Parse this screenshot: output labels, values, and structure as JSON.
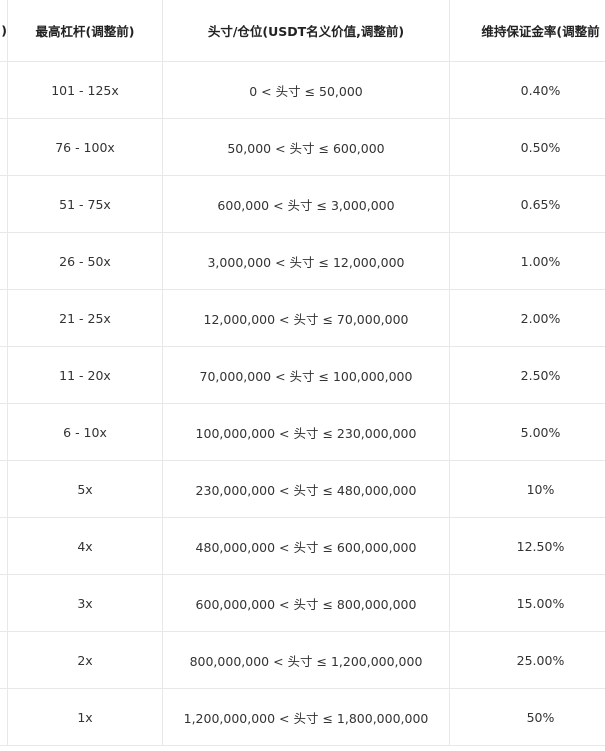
{
  "table": {
    "cut_header": ")",
    "headers": [
      "最高杠杆(调整前)",
      "头寸/仓位(USDT名义价值,调整前)",
      "维持保证金率(调整前"
    ],
    "rows": [
      [
        "101 - 125x",
        "0 < 头寸 ≤ 50,000",
        "0.40%"
      ],
      [
        "76 - 100x",
        "50,000 < 头寸 ≤ 600,000",
        "0.50%"
      ],
      [
        "51 - 75x",
        "600,000 < 头寸 ≤ 3,000,000",
        "0.65%"
      ],
      [
        "26 - 50x",
        "3,000,000 < 头寸 ≤ 12,000,000",
        "1.00%"
      ],
      [
        "21 - 25x",
        "12,000,000 < 头寸 ≤ 70,000,000",
        "2.00%"
      ],
      [
        "11 - 20x",
        "70,000,000 < 头寸 ≤ 100,000,000",
        "2.50%"
      ],
      [
        "6 - 10x",
        "100,000,000 < 头寸 ≤ 230,000,000",
        "5.00%"
      ],
      [
        "5x",
        "230,000,000 < 头寸 ≤ 480,000,000",
        "10%"
      ],
      [
        "4x",
        "480,000,000 < 头寸 ≤ 600,000,000",
        "12.50%"
      ],
      [
        "3x",
        "600,000,000 < 头寸 ≤ 800,000,000",
        "15.00%"
      ],
      [
        "2x",
        "800,000,000 < 头寸 ≤ 1,200,000,000",
        "25.00%"
      ],
      [
        "1x",
        "1,200,000,000 < 头寸 ≤ 1,800,000,000",
        "50%"
      ]
    ]
  }
}
